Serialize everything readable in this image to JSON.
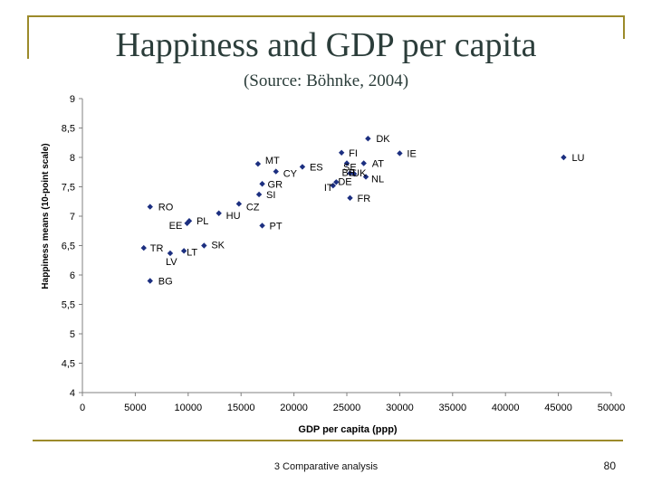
{
  "slide": {
    "title": "Happiness and GDP per capita",
    "subtitle": "(Source: Böhnke, 2004)",
    "footer": "3 Comparative analysis",
    "page_number": "80"
  },
  "colors": {
    "accent_line": "#9c8a2a",
    "marker": "#1c2f80",
    "title_text": "#2b3d3a"
  },
  "chart_data": {
    "type": "scatter",
    "title": "",
    "xlabel": "GDP per capita (ppp)",
    "ylabel": "Happiness means (10-point scale)",
    "xlim": [
      0,
      50000
    ],
    "ylim": [
      4,
      9
    ],
    "xticks": [
      "0",
      "5000",
      "10000",
      "15000",
      "20000",
      "25000",
      "30000",
      "35000",
      "40000",
      "45000",
      "50000"
    ],
    "xtick_values": [
      0,
      5000,
      10000,
      15000,
      20000,
      25000,
      30000,
      35000,
      40000,
      45000,
      50000
    ],
    "yticks": [
      "4",
      "4,5",
      "5",
      "5,5",
      "6",
      "6,5",
      "7",
      "7,5",
      "8",
      "8,5",
      "9"
    ],
    "ytick_values": [
      4,
      4.5,
      5,
      5.5,
      6,
      6.5,
      7,
      7.5,
      8,
      8.5,
      9
    ],
    "grid": false,
    "legend": "none",
    "points": [
      {
        "label": "DK",
        "x": 27000,
        "y": 8.32
      },
      {
        "label": "FI",
        "x": 24500,
        "y": 8.08
      },
      {
        "label": "IE",
        "x": 30000,
        "y": 8.07
      },
      {
        "label": "LU",
        "x": 45500,
        "y": 8.0
      },
      {
        "label": "SE",
        "x": 25000,
        "y": 7.9
      },
      {
        "label": "AT",
        "x": 26600,
        "y": 7.9
      },
      {
        "label": "MT",
        "x": 16600,
        "y": 7.89
      },
      {
        "label": "ES",
        "x": 20800,
        "y": 7.84
      },
      {
        "label": "CY",
        "x": 18300,
        "y": 7.76
      },
      {
        "label": "BE",
        "x": 25300,
        "y": 7.73
      },
      {
        "label": "UK",
        "x": 25700,
        "y": 7.72
      },
      {
        "label": "NL",
        "x": 26800,
        "y": 7.67
      },
      {
        "label": "DE",
        "x": 24000,
        "y": 7.58
      },
      {
        "label": "GR",
        "x": 17000,
        "y": 7.55
      },
      {
        "label": "IT",
        "x": 23700,
        "y": 7.52
      },
      {
        "label": "SI",
        "x": 16700,
        "y": 7.37
      },
      {
        "label": "FR",
        "x": 25300,
        "y": 7.31
      },
      {
        "label": "CZ",
        "x": 14800,
        "y": 7.21
      },
      {
        "label": "RO",
        "x": 6400,
        "y": 7.16
      },
      {
        "label": "HU",
        "x": 12900,
        "y": 7.05
      },
      {
        "label": "PL",
        "x": 10100,
        "y": 6.92
      },
      {
        "label": "EE",
        "x": 9900,
        "y": 6.88
      },
      {
        "label": "PT",
        "x": 17000,
        "y": 6.84
      },
      {
        "label": "SK",
        "x": 11500,
        "y": 6.5
      },
      {
        "label": "TR",
        "x": 5800,
        "y": 6.46
      },
      {
        "label": "LT",
        "x": 9600,
        "y": 6.41
      },
      {
        "label": "LV",
        "x": 8300,
        "y": 6.37
      },
      {
        "label": "BG",
        "x": 6400,
        "y": 5.9
      }
    ]
  }
}
